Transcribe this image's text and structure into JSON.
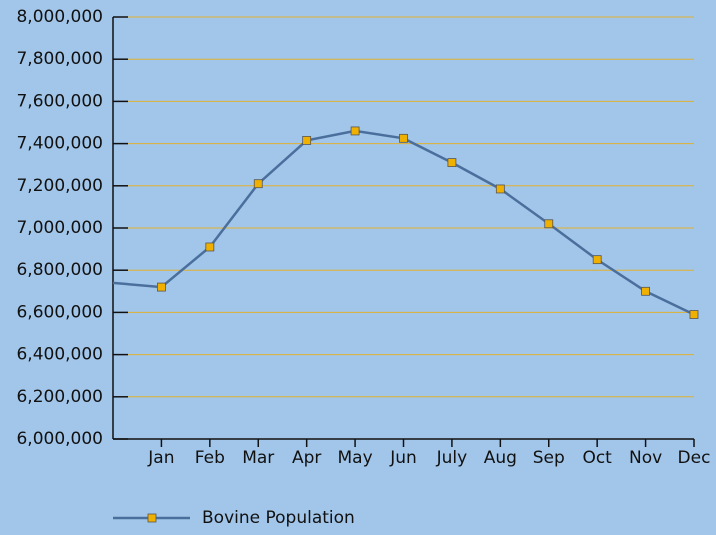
{
  "chart_data": {
    "type": "line",
    "categories": [
      null,
      "Jan",
      "Feb",
      "Mar",
      "Apr",
      "May",
      "Jun",
      "July",
      "Aug",
      "Sep",
      "Oct",
      "Nov",
      "Dec"
    ],
    "series": [
      {
        "name": "Bovine Population",
        "color": "#4a6f9c",
        "marker_color": "#f0b000",
        "values": [
          6740000,
          6720000,
          6910000,
          7210000,
          7415000,
          7460000,
          7425000,
          7310000,
          7185000,
          7020000,
          6850000,
          6700000,
          6590000
        ]
      }
    ],
    "ylim": [
      6000000,
      8000000
    ],
    "yticks": [
      {
        "value": 6000000,
        "label": "6,000,000"
      },
      {
        "value": 6200000,
        "label": "6,200,000"
      },
      {
        "value": 6400000,
        "label": "6,400,000"
      },
      {
        "value": 6600000,
        "label": "6,600,000"
      },
      {
        "value": 6800000,
        "label": "6,800,000"
      },
      {
        "value": 7000000,
        "label": "7,000,000"
      },
      {
        "value": 7200000,
        "label": "7,200,000"
      },
      {
        "value": 7400000,
        "label": "7,400,000"
      },
      {
        "value": 7600000,
        "label": "7,600,000"
      },
      {
        "value": 7800000,
        "label": "7,800,000"
      },
      {
        "value": 8000000,
        "label": "8,000,000"
      }
    ],
    "grid": true,
    "grid_color": "#e0b030",
    "legend": "bottom"
  }
}
